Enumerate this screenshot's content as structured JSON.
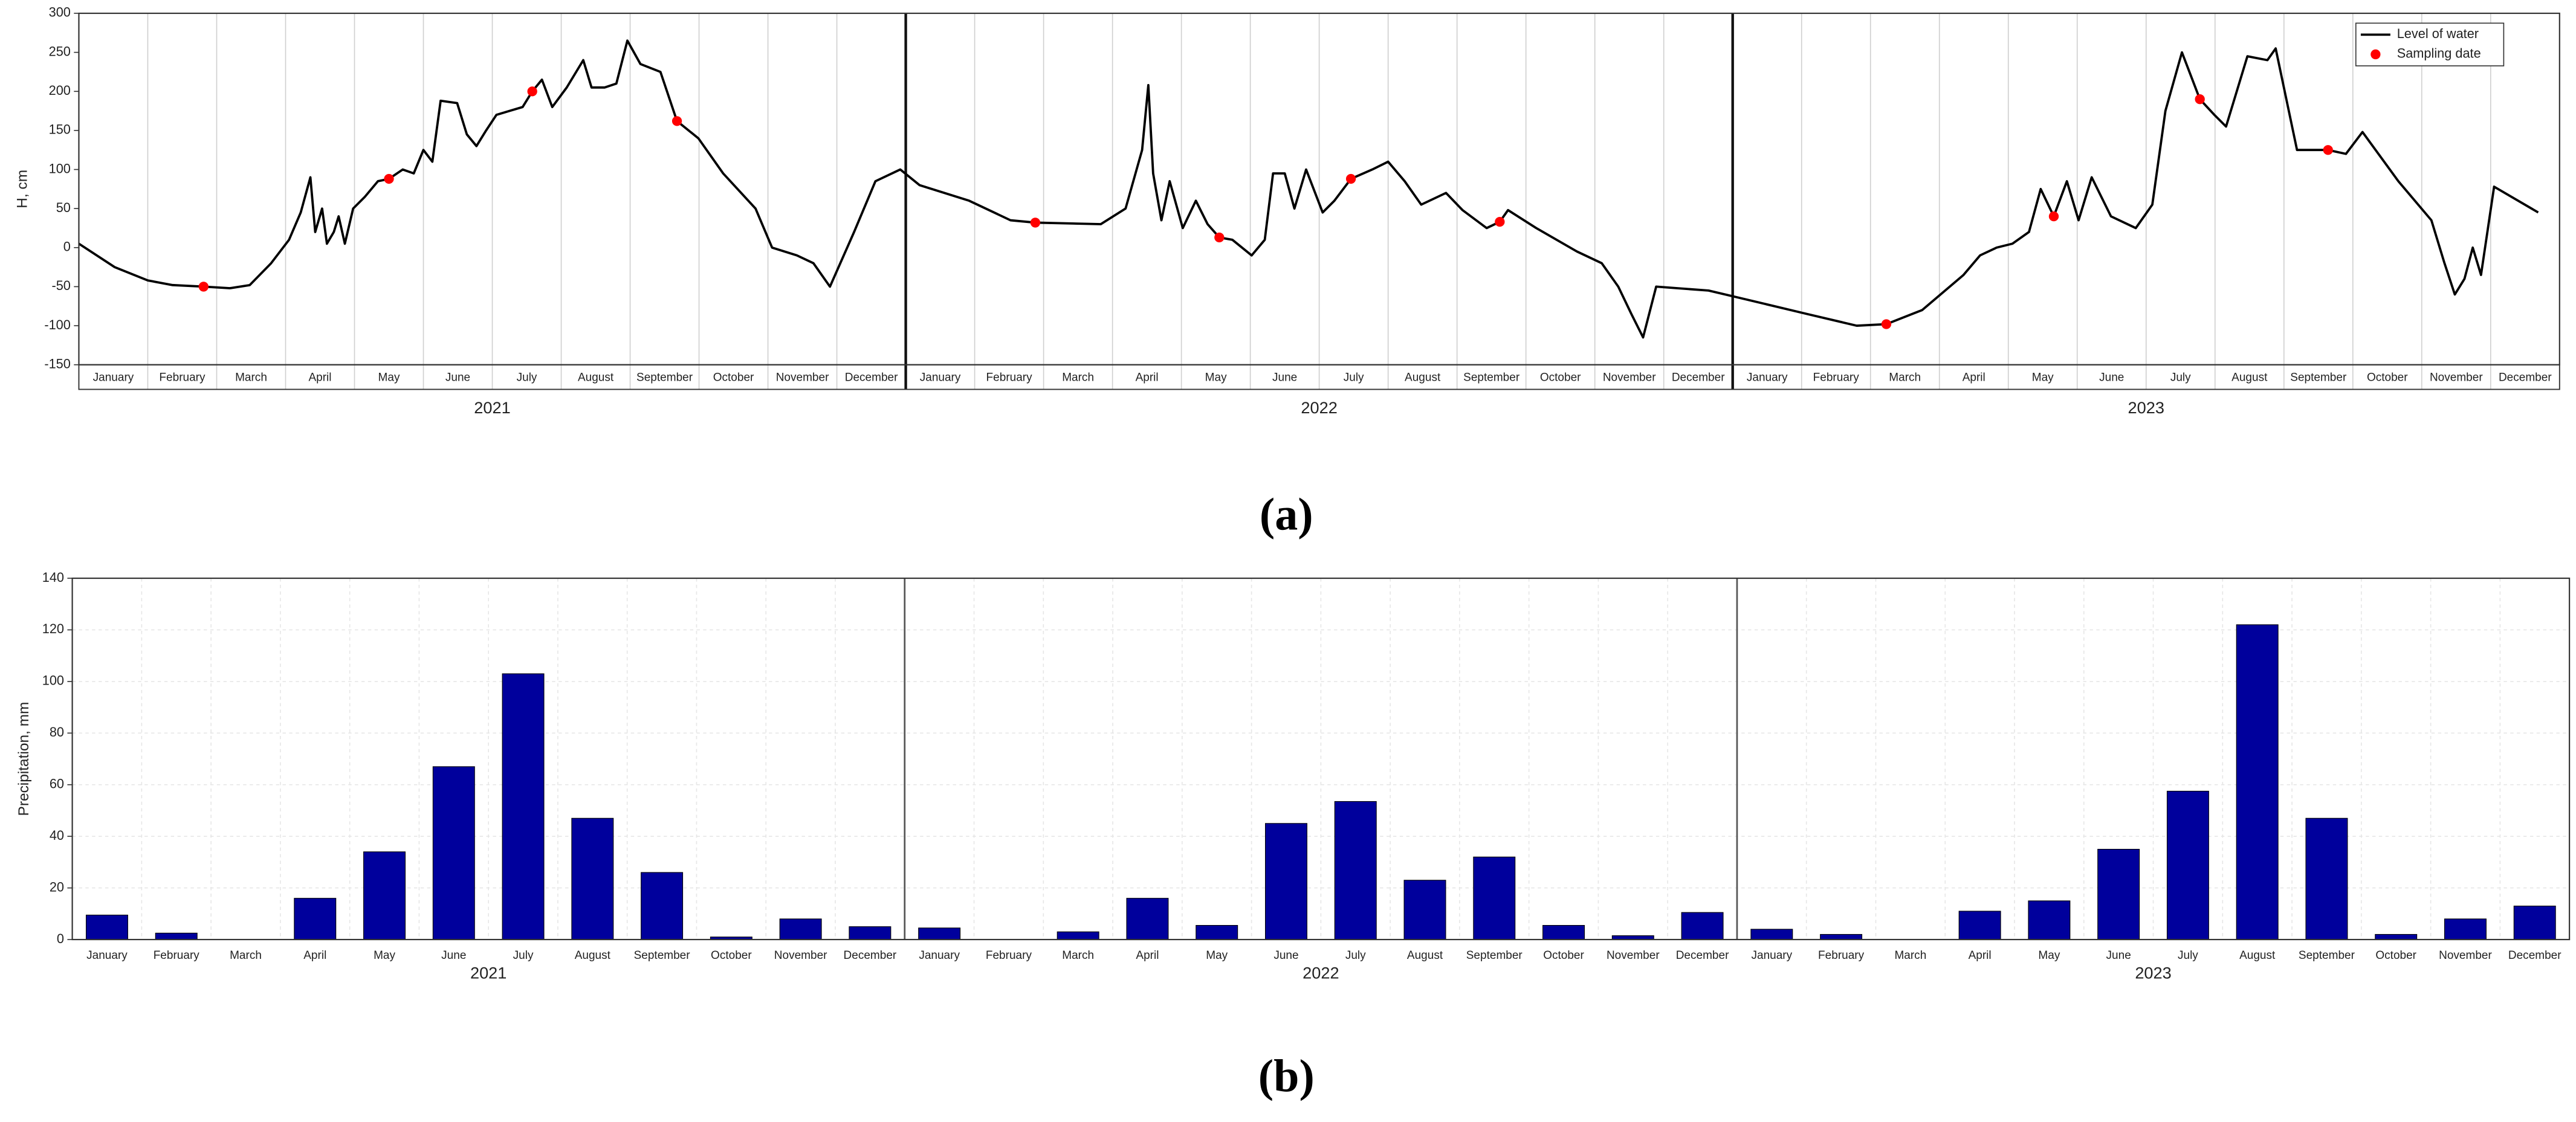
{
  "chart_data": [
    {
      "type": "line",
      "panel_label": "(a)",
      "ylabel": "H, cm",
      "categories": [
        "January",
        "February",
        "March",
        "April",
        "May",
        "June",
        "July",
        "August",
        "September",
        "October",
        "November",
        "December",
        "January",
        "February",
        "March",
        "April",
        "May",
        "June",
        "July",
        "August",
        "September",
        "October",
        "November",
        "December",
        "January",
        "February",
        "March",
        "April",
        "May",
        "June",
        "July",
        "August",
        "September",
        "October",
        "November",
        "December"
      ],
      "groups": [
        "2021",
        "2022",
        "2023"
      ],
      "xlim": [
        0,
        36
      ],
      "ylim": [
        -150,
        300
      ],
      "yticks": [
        -150,
        -100,
        -50,
        0,
        50,
        100,
        150,
        200,
        250,
        300
      ],
      "grid": true,
      "legend": "upper right",
      "series": [
        {
          "name": "Level of water",
          "color": "#000000",
          "x": [
            0,
            0.52,
            1.0,
            1.36,
            1.81,
            2.19,
            2.48,
            2.79,
            3.05,
            3.22,
            3.36,
            3.43,
            3.53,
            3.6,
            3.7,
            3.77,
            3.86,
            3.98,
            4.15,
            4.34,
            4.5,
            4.7,
            4.86,
            5.0,
            5.13,
            5.25,
            5.49,
            5.63,
            5.77,
            5.91,
            6.06,
            6.25,
            6.44,
            6.58,
            6.72,
            6.87,
            7.08,
            7.32,
            7.44,
            7.63,
            7.8,
            7.96,
            8.15,
            8.44,
            8.68,
            8.99,
            9.35,
            9.82,
            10.06,
            10.42,
            10.66,
            10.9,
            11.25,
            11.56,
            11.92,
            12.2,
            12.92,
            13.52,
            13.88,
            14.83,
            15.19,
            15.43,
            15.52,
            15.59,
            15.71,
            15.83,
            16.02,
            16.21,
            16.38,
            16.55,
            16.74,
            17.02,
            17.21,
            17.33,
            17.5,
            17.64,
            17.81,
            18.05,
            18.22,
            18.46,
            18.77,
            19.0,
            19.24,
            19.48,
            19.84,
            20.08,
            20.43,
            20.62,
            20.74,
            21.15,
            21.74,
            22.1,
            22.34,
            22.53,
            22.7,
            22.89,
            23.65,
            24.13,
            25.08,
            25.8,
            26.23,
            26.75,
            27.35,
            27.59,
            27.83,
            28.06,
            28.3,
            28.47,
            28.66,
            28.85,
            29.02,
            29.21,
            29.49,
            29.85,
            30.09,
            30.28,
            30.52,
            30.78,
            30.99,
            31.16,
            31.47,
            31.76,
            31.88,
            32.19,
            32.64,
            32.9,
            33.14,
            33.66,
            34.14,
            34.33,
            34.48,
            34.62,
            34.74,
            34.86,
            35.05,
            35.69
          ],
          "values": [
            5,
            -25,
            -42,
            -48,
            -50,
            -52,
            -48,
            -20,
            10,
            45,
            90,
            20,
            50,
            5,
            20,
            40,
            5,
            50,
            65,
            85,
            88,
            100,
            95,
            125,
            110,
            188,
            185,
            145,
            130,
            150,
            170,
            175,
            180,
            200,
            215,
            180,
            205,
            240,
            205,
            205,
            210,
            265,
            235,
            225,
            162,
            140,
            95,
            50,
            0,
            -10,
            -20,
            -50,
            20,
            85,
            100,
            80,
            60,
            35,
            32,
            30,
            50,
            125,
            208,
            95,
            35,
            85,
            25,
            60,
            30,
            13,
            10,
            -10,
            10,
            95,
            95,
            50,
            100,
            45,
            60,
            88,
            100,
            110,
            85,
            55,
            70,
            48,
            25,
            33,
            48,
            25,
            -5,
            -20,
            -50,
            -85,
            -115,
            -50,
            -55,
            -65,
            -85,
            -100,
            -98,
            -80,
            -35,
            -10,
            0,
            5,
            20,
            75,
            40,
            85,
            35,
            90,
            40,
            25,
            55,
            175,
            250,
            190,
            170,
            155,
            245,
            240,
            255,
            125,
            125,
            120,
            148,
            85,
            35,
            -20,
            -60,
            -40,
            0,
            -35,
            78,
            45
          ]
        },
        {
          "name": "Sampling date",
          "color": "#ff0000",
          "marker": "circle",
          "x": [
            1.81,
            4.5,
            6.58,
            8.68,
            13.88,
            16.55,
            18.46,
            20.62,
            26.23,
            28.66,
            30.78,
            32.64
          ],
          "values": [
            -50,
            88,
            200,
            162,
            32,
            13,
            88,
            33,
            -98,
            40,
            190,
            125
          ]
        }
      ]
    },
    {
      "type": "bar",
      "panel_label": "(b)",
      "ylabel": "Precipitation, mm",
      "categories": [
        "January",
        "February",
        "March",
        "April",
        "May",
        "June",
        "July",
        "August",
        "September",
        "October",
        "November",
        "December",
        "January",
        "February",
        "March",
        "April",
        "May",
        "June",
        "July",
        "August",
        "September",
        "October",
        "November",
        "December",
        "January",
        "February",
        "March",
        "April",
        "May",
        "June",
        "July",
        "August",
        "September",
        "October",
        "November",
        "December"
      ],
      "groups": [
        "2021",
        "2022",
        "2023"
      ],
      "values": [
        9.5,
        2.5,
        0,
        16,
        34,
        67,
        103,
        47,
        26,
        1,
        8,
        5,
        4.5,
        0,
        3,
        16,
        5.5,
        45,
        53.5,
        23,
        32,
        5.5,
        1.5,
        10.5,
        4,
        2,
        0,
        11,
        15,
        35,
        57.5,
        122,
        47,
        2,
        8,
        13
      ],
      "color": "#00009c",
      "ylim": [
        0,
        140
      ],
      "yticks": [
        0,
        20,
        40,
        60,
        80,
        100,
        120,
        140
      ],
      "grid": true
    }
  ]
}
